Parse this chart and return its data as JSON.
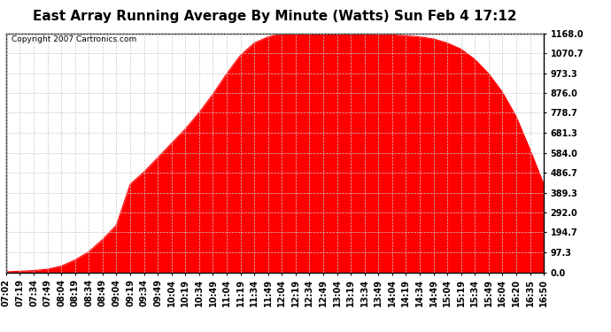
{
  "title": "East Array Running Average By Minute (Watts) Sun Feb 4 17:12",
  "copyright": "Copyright 2007 Cartronics.com",
  "fill_color": "#FF0000",
  "line_color": "#FF0000",
  "background_color": "#FFFFFF",
  "plot_bg_color": "#FFFFFF",
  "grid_color": "#C8C8C8",
  "ymin": 0.0,
  "ymax": 1168.0,
  "yticks": [
    0.0,
    97.3,
    194.7,
    292.0,
    389.3,
    486.7,
    584.0,
    681.3,
    778.7,
    876.0,
    973.3,
    1070.7,
    1168.0
  ],
  "ytick_labels": [
    "0.0",
    "97.3",
    "194.7",
    "292.0",
    "389.3",
    "486.7",
    "584.0",
    "681.3",
    "778.7",
    "876.0",
    "973.3",
    "1070.7",
    "1168.0"
  ],
  "x_times": [
    "07:02",
    "07:19",
    "07:34",
    "07:49",
    "08:04",
    "08:19",
    "08:34",
    "08:49",
    "09:04",
    "09:19",
    "09:34",
    "09:49",
    "10:04",
    "10:19",
    "10:34",
    "10:49",
    "11:04",
    "11:19",
    "11:34",
    "11:49",
    "12:04",
    "12:19",
    "12:34",
    "12:49",
    "13:04",
    "13:19",
    "13:34",
    "13:49",
    "14:04",
    "14:19",
    "14:34",
    "14:49",
    "15:04",
    "15:19",
    "15:34",
    "15:49",
    "16:04",
    "16:20",
    "16:35",
    "16:50"
  ],
  "y_values": [
    2,
    5,
    8,
    15,
    30,
    60,
    100,
    160,
    230,
    430,
    490,
    560,
    630,
    700,
    780,
    870,
    970,
    1060,
    1120,
    1150,
    1165,
    1168,
    1168,
    1168,
    1168,
    1165,
    1165,
    1162,
    1160,
    1155,
    1150,
    1140,
    1120,
    1090,
    1040,
    970,
    880,
    760,
    600,
    430
  ],
  "title_fontsize": 11,
  "tick_fontsize": 7,
  "copyright_fontsize": 6.5
}
